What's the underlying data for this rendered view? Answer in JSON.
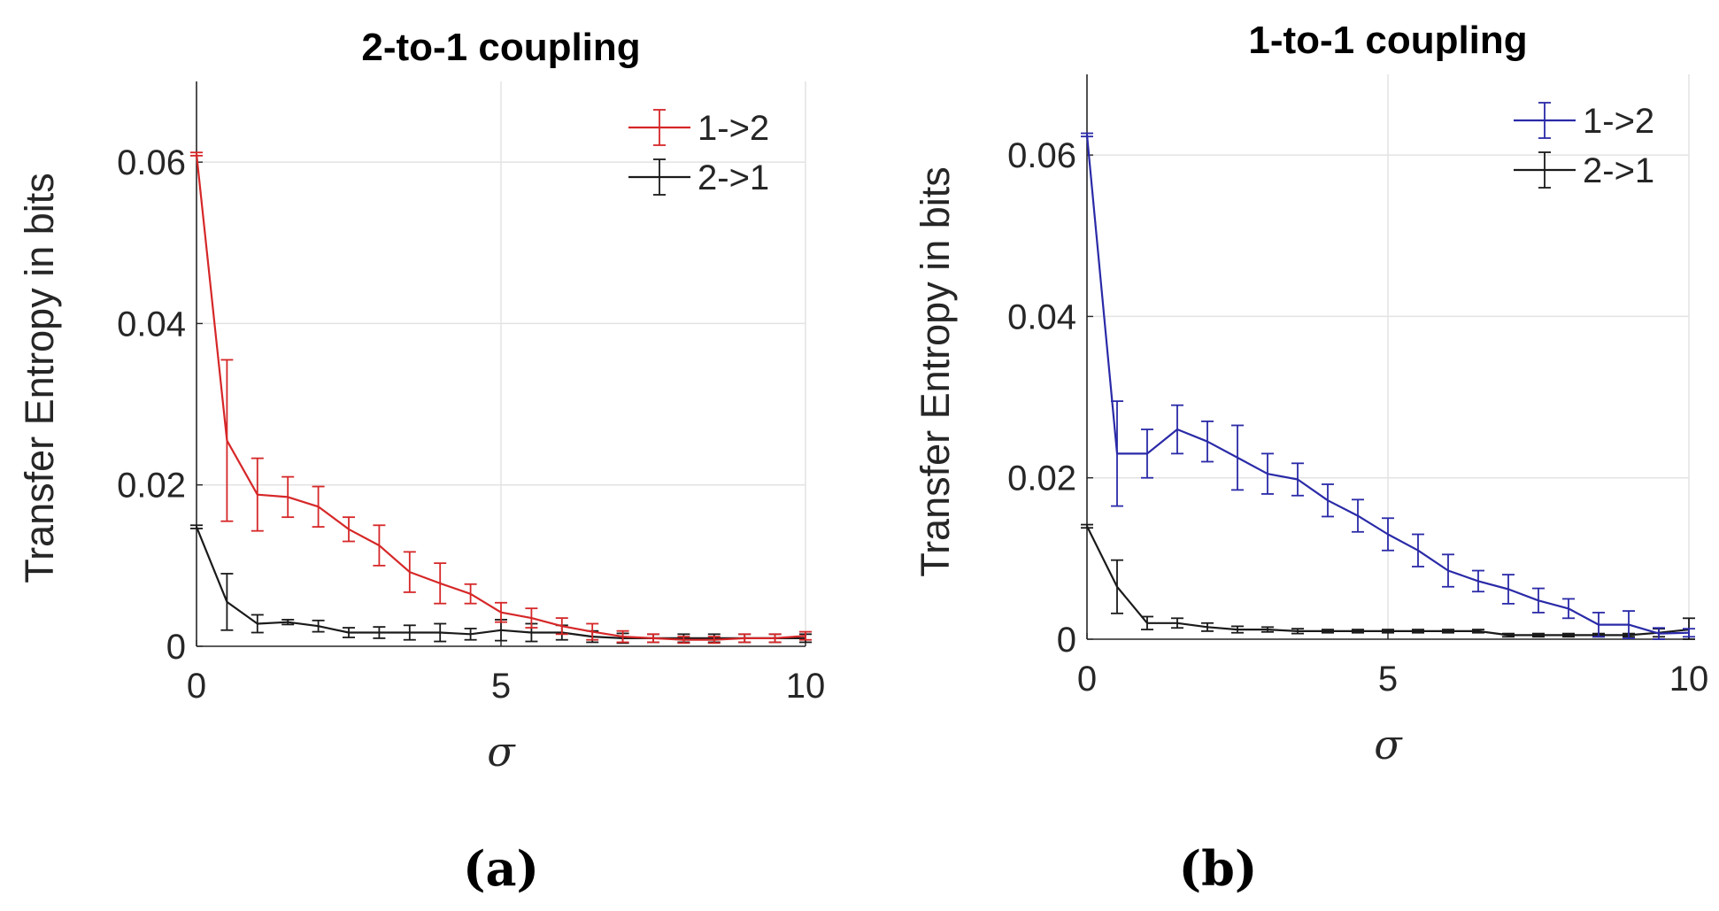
{
  "chart_data": [
    {
      "type": "line",
      "panel": "(a)",
      "title": "2-to-1 coupling",
      "xlabel": "σ",
      "ylabel": "Transfer Entropy in bits",
      "xlim": [
        0,
        10
      ],
      "ylim": [
        0,
        0.07
      ],
      "xticks": [
        0,
        5,
        10
      ],
      "xtick_labels": [
        "0",
        "5",
        "10"
      ],
      "yticks": [
        0,
        0.02,
        0.04,
        0.06
      ],
      "ytick_labels": [
        "0",
        "0.02",
        "0.04",
        "0.06"
      ],
      "grid": true,
      "legend_position": "top-right",
      "x": [
        0,
        0.5,
        1,
        1.5,
        2,
        2.5,
        3,
        3.5,
        4,
        4.5,
        5,
        5.5,
        6,
        6.5,
        7,
        7.5,
        8,
        8.5,
        9,
        9.5,
        10
      ],
      "series": [
        {
          "name": "1->2",
          "color": "#d62728",
          "values": [
            0.061,
            0.0255,
            0.0188,
            0.0185,
            0.0173,
            0.0145,
            0.0125,
            0.0092,
            0.0078,
            0.0065,
            0.0042,
            0.0035,
            0.0025,
            0.0018,
            0.0012,
            0.001,
            0.0008,
            0.0008,
            0.001,
            0.001,
            0.0013
          ],
          "errors": [
            0.0002,
            0.01,
            0.0045,
            0.0025,
            0.0025,
            0.0015,
            0.0025,
            0.0025,
            0.0025,
            0.0012,
            0.0012,
            0.0012,
            0.001,
            0.001,
            0.0007,
            0.0005,
            0.0004,
            0.0004,
            0.0005,
            0.0005,
            0.0005
          ]
        },
        {
          "name": "2->1",
          "color": "#1a1a1a",
          "values": [
            0.0148,
            0.0055,
            0.0028,
            0.003,
            0.0025,
            0.0017,
            0.0017,
            0.0017,
            0.0017,
            0.0015,
            0.002,
            0.0017,
            0.0017,
            0.0012,
            0.001,
            0.001,
            0.001,
            0.001,
            0.001,
            0.001,
            0.001
          ],
          "errors": [
            0.0002,
            0.0035,
            0.0011,
            0.0003,
            0.0007,
            0.0006,
            0.0007,
            0.0009,
            0.0011,
            0.0007,
            0.0013,
            0.0011,
            0.0009,
            0.0007,
            0.0006,
            0.0005,
            0.0005,
            0.0005,
            0.0005,
            0.0005,
            0.0005
          ]
        }
      ]
    },
    {
      "type": "line",
      "panel": "(b)",
      "title": "1-to-1 coupling",
      "xlabel": "σ",
      "ylabel": "Transfer Entropy in bits",
      "xlim": [
        0,
        10
      ],
      "ylim": [
        0,
        0.07
      ],
      "xticks": [
        0,
        5,
        10
      ],
      "xtick_labels": [
        "0",
        "5",
        "10"
      ],
      "yticks": [
        0,
        0.02,
        0.04,
        0.06
      ],
      "ytick_labels": [
        "0",
        "0.02",
        "0.04",
        "0.06"
      ],
      "grid": true,
      "legend_position": "top-right",
      "x": [
        0,
        0.5,
        1,
        1.5,
        2,
        2.5,
        3,
        3.5,
        4,
        4.5,
        5,
        5.5,
        6,
        6.5,
        7,
        7.5,
        8,
        8.5,
        9,
        9.5,
        10
      ],
      "series": [
        {
          "name": "1->2",
          "color": "#2a2aa8",
          "values": [
            0.0625,
            0.023,
            0.023,
            0.026,
            0.0245,
            0.0225,
            0.0205,
            0.0198,
            0.0172,
            0.0153,
            0.013,
            0.011,
            0.0085,
            0.0072,
            0.0062,
            0.0048,
            0.0038,
            0.0018,
            0.0018,
            0.0007,
            0.0008
          ],
          "errors": [
            0.0002,
            0.0065,
            0.003,
            0.003,
            0.0025,
            0.004,
            0.0025,
            0.002,
            0.002,
            0.002,
            0.002,
            0.002,
            0.002,
            0.0013,
            0.0018,
            0.0015,
            0.0012,
            0.0015,
            0.0017,
            0.0007,
            0.0005
          ]
        },
        {
          "name": "2->1",
          "color": "#1a1a1a",
          "values": [
            0.014,
            0.0065,
            0.002,
            0.002,
            0.0015,
            0.0012,
            0.0012,
            0.001,
            0.001,
            0.001,
            0.001,
            0.001,
            0.001,
            0.001,
            0.0005,
            0.0005,
            0.0005,
            0.0005,
            0.0005,
            0.0008,
            0.0012
          ],
          "errors": [
            0.0002,
            0.0033,
            0.0008,
            0.0006,
            0.0005,
            0.0004,
            0.0003,
            0.0003,
            0.0002,
            0.0002,
            0.0002,
            0.0002,
            0.0002,
            0.0002,
            0.0002,
            0.0002,
            0.0002,
            0.0002,
            0.0002,
            0.0005,
            0.0014
          ]
        }
      ]
    }
  ]
}
